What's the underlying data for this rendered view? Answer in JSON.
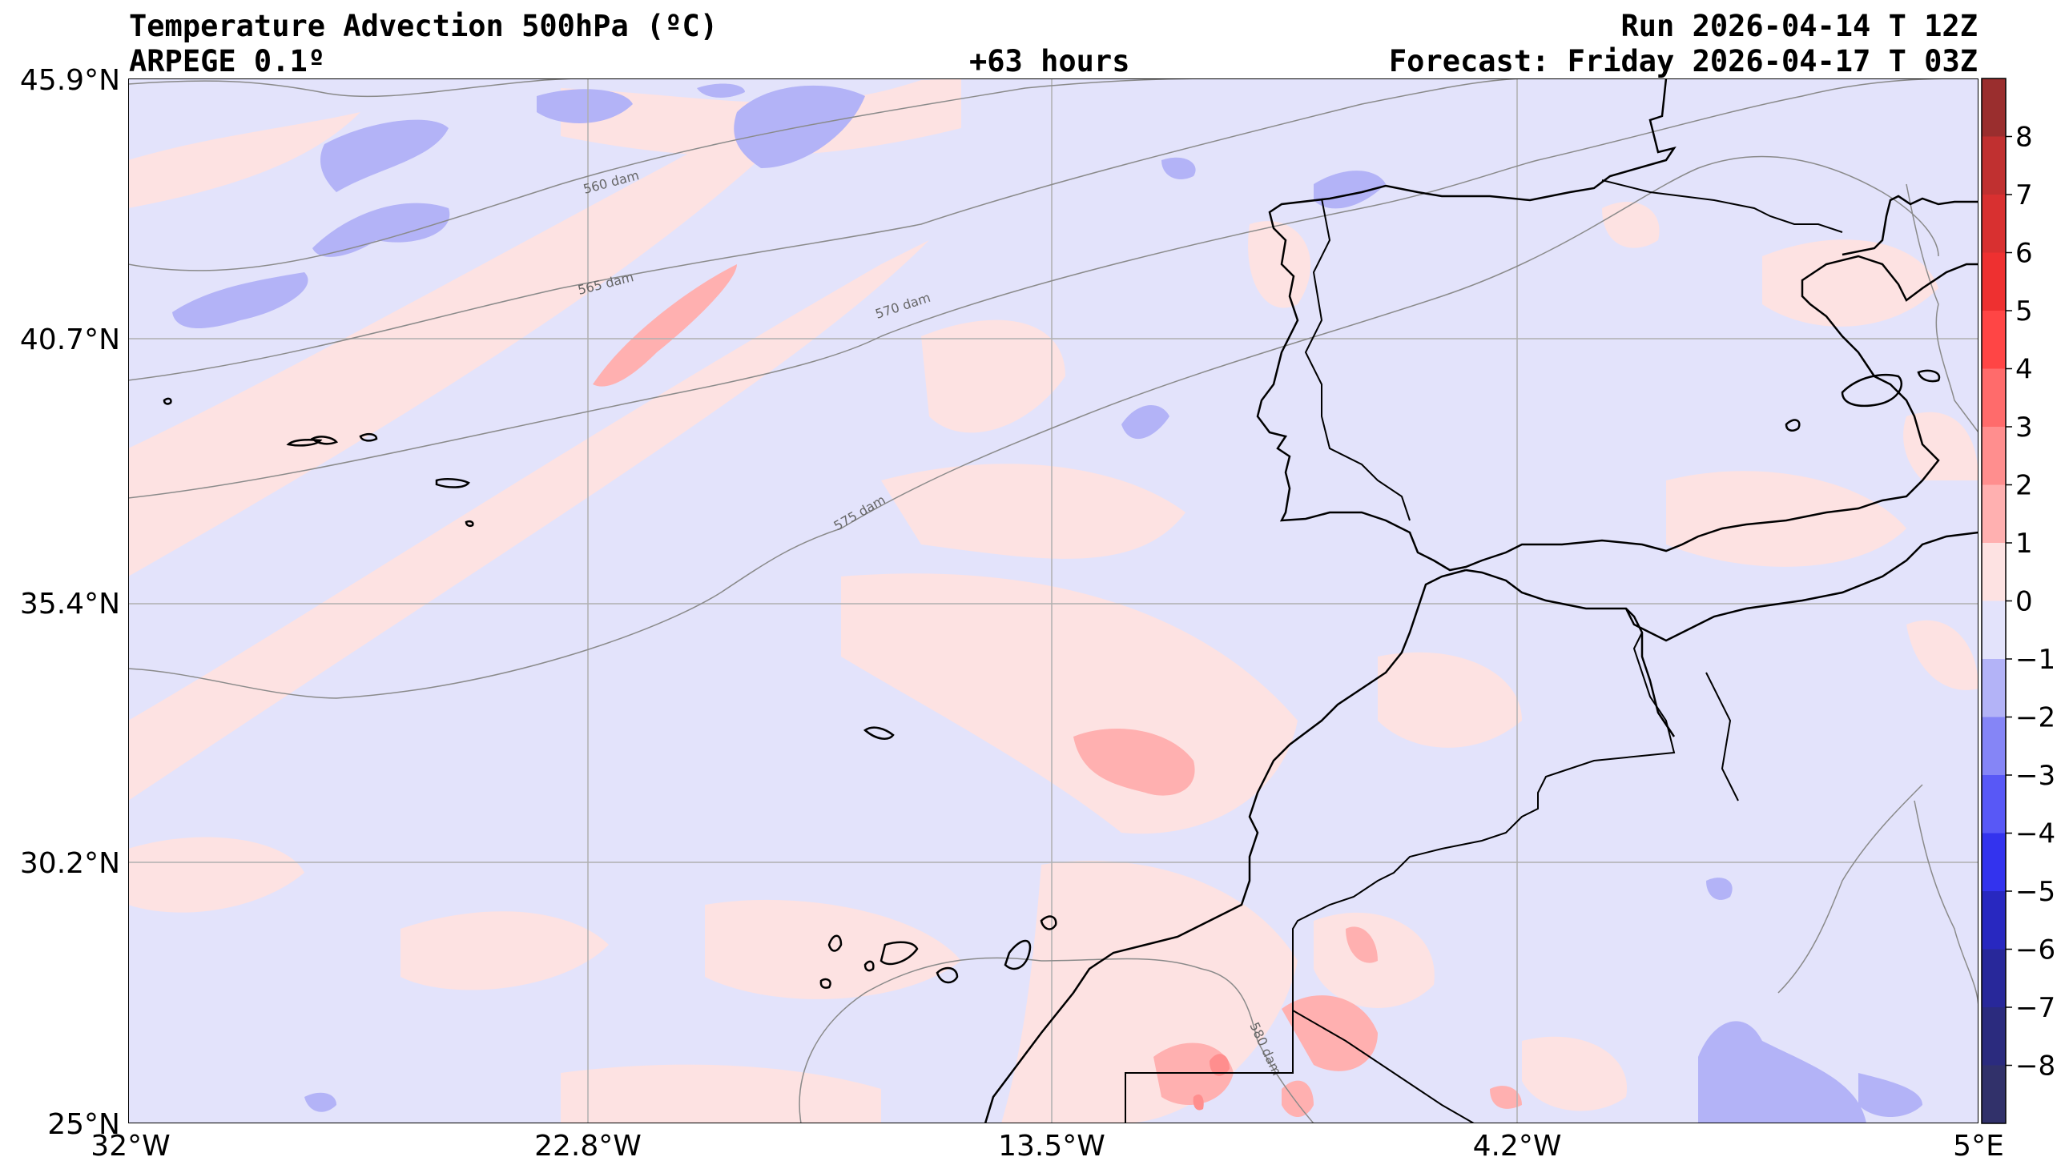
{
  "header": {
    "title": "Temperature Advection  500hPa (ºC)",
    "model": "ARPEGE 0.1º",
    "lead_time": "+63 hours",
    "run": "Run 2026-04-14 T 12Z",
    "forecast": "Forecast: Friday 2026-04-17 T 03Z"
  },
  "axes": {
    "lat_labels": [
      "45.9°N",
      "40.7°N",
      "35.4°N",
      "30.2°N",
      "25°N"
    ],
    "lon_labels": [
      "32°W",
      "22.8°W",
      "13.5°W",
      "4.2°W",
      "5°E"
    ]
  },
  "isohypses": [
    "560 dam",
    "565 dam",
    "570 dam",
    "575 dam",
    "580 dam"
  ],
  "colorbar": {
    "tick_labels": [
      "8",
      "7",
      "6",
      "5",
      "4",
      "3",
      "2",
      "1",
      "0",
      "−1",
      "−2",
      "−3",
      "−4",
      "−5",
      "−6",
      "−7",
      "−8"
    ],
    "colors": [
      "#9a2e2e",
      "#c03030",
      "#d83030",
      "#ee3030",
      "#ff4545",
      "#ff6b6b",
      "#ff8e8e",
      "#ffb0b0",
      "#fde2e2",
      "#e3e3fb",
      "#b3b3f7",
      "#8585f6",
      "#5858f6",
      "#3333ee",
      "#2828c0",
      "#28289a",
      "#2b2b7e",
      "#31316a"
    ]
  },
  "colors": {
    "neg_weak": "#e3e3fb",
    "pos_weak": "#fde2e2",
    "neg_mid": "#b3b3f7",
    "pos_mid": "#ffb0b0",
    "pos_strong": "#ff8e8e",
    "gridline": "#b0b0b0",
    "isohypse": "#8a8a8a",
    "coast": "#000000"
  }
}
